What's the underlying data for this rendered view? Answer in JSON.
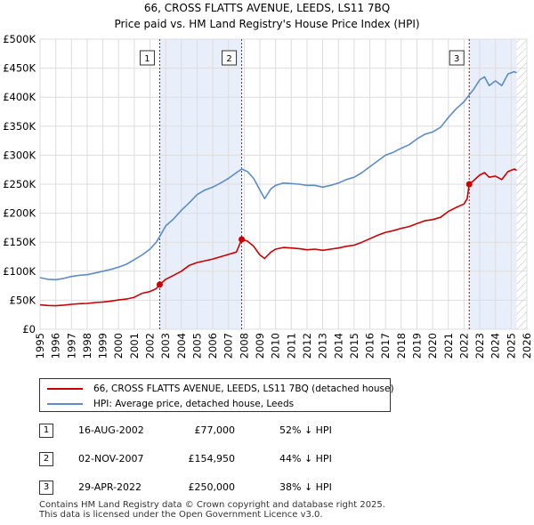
{
  "chart_data": {
    "type": "line",
    "title": "66, CROSS FLATTS AVENUE, LEEDS, LS11 7BQ",
    "subtitle": "Price paid vs. HM Land Registry's House Price Index (HPI)",
    "xlim": [
      1995,
      2026
    ],
    "ylim": [
      0,
      500000
    ],
    "x_ticks": [
      "1995",
      "1996",
      "1997",
      "1998",
      "1999",
      "2000",
      "2001",
      "2002",
      "2003",
      "2004",
      "2005",
      "2006",
      "2007",
      "2008",
      "2009",
      "2010",
      "2011",
      "2012",
      "2013",
      "2014",
      "2015",
      "2016",
      "2017",
      "2018",
      "2019",
      "2020",
      "2021",
      "2022",
      "2023",
      "2024",
      "2025",
      "2026"
    ],
    "y_ticks": [
      {
        "value": 0,
        "label": "£0"
      },
      {
        "value": 50000,
        "label": "£50K"
      },
      {
        "value": 100000,
        "label": "£100K"
      },
      {
        "value": 150000,
        "label": "£150K"
      },
      {
        "value": 200000,
        "label": "£200K"
      },
      {
        "value": 250000,
        "label": "£250K"
      },
      {
        "value": 300000,
        "label": "£300K"
      },
      {
        "value": 350000,
        "label": "£350K"
      },
      {
        "value": 400000,
        "label": "£400K"
      },
      {
        "value": 450000,
        "label": "£450K"
      },
      {
        "value": 500000,
        "label": "£500K"
      }
    ],
    "shaded_ranges": [
      [
        2002.62,
        2007.84
      ],
      [
        2022.33,
        2025.35
      ]
    ],
    "hatched_from": 2025.35,
    "series": [
      {
        "name": "66, CROSS FLATTS AVENUE, LEEDS, LS11 7BQ (detached house)",
        "color": "#cc0000",
        "points": [
          [
            1995.0,
            42000
          ],
          [
            1995.5,
            41000
          ],
          [
            1996.0,
            40500
          ],
          [
            1996.5,
            41500
          ],
          [
            1997.0,
            43000
          ],
          [
            1997.5,
            44000
          ],
          [
            1998.0,
            44500
          ],
          [
            1998.5,
            46000
          ],
          [
            1999.0,
            47000
          ],
          [
            1999.5,
            48500
          ],
          [
            2000.0,
            50500
          ],
          [
            2000.5,
            52000
          ],
          [
            2001.0,
            55000
          ],
          [
            2001.5,
            62000
          ],
          [
            2002.0,
            65000
          ],
          [
            2002.4,
            70000
          ],
          [
            2002.62,
            77000
          ],
          [
            2003.0,
            86000
          ],
          [
            2003.5,
            93000
          ],
          [
            2004.0,
            100000
          ],
          [
            2004.5,
            110000
          ],
          [
            2005.0,
            115000
          ],
          [
            2005.5,
            118000
          ],
          [
            2006.0,
            121000
          ],
          [
            2006.5,
            125000
          ],
          [
            2007.0,
            129000
          ],
          [
            2007.5,
            133000
          ],
          [
            2007.84,
            154950
          ],
          [
            2008.2,
            152000
          ],
          [
            2008.6,
            143000
          ],
          [
            2009.0,
            128000
          ],
          [
            2009.3,
            122000
          ],
          [
            2009.7,
            133000
          ],
          [
            2010.0,
            138000
          ],
          [
            2010.5,
            141000
          ],
          [
            2011.0,
            140000
          ],
          [
            2011.5,
            139000
          ],
          [
            2012.0,
            137000
          ],
          [
            2012.5,
            138000
          ],
          [
            2013.0,
            136000
          ],
          [
            2013.5,
            138000
          ],
          [
            2014.0,
            140000
          ],
          [
            2014.5,
            143000
          ],
          [
            2015.0,
            145000
          ],
          [
            2015.5,
            150000
          ],
          [
            2016.0,
            156000
          ],
          [
            2016.5,
            162000
          ],
          [
            2017.0,
            167000
          ],
          [
            2017.5,
            170000
          ],
          [
            2018.0,
            174000
          ],
          [
            2018.5,
            177000
          ],
          [
            2019.0,
            182000
          ],
          [
            2019.5,
            187000
          ],
          [
            2020.0,
            189000
          ],
          [
            2020.5,
            193000
          ],
          [
            2021.0,
            203000
          ],
          [
            2021.5,
            210000
          ],
          [
            2022.0,
            216000
          ],
          [
            2022.2,
            225000
          ],
          [
            2022.33,
            250000
          ],
          [
            2022.6,
            256000
          ],
          [
            2023.0,
            266000
          ],
          [
            2023.3,
            270000
          ],
          [
            2023.6,
            262000
          ],
          [
            2024.0,
            264000
          ],
          [
            2024.4,
            258000
          ],
          [
            2024.8,
            272000
          ],
          [
            2025.2,
            276000
          ],
          [
            2025.35,
            274000
          ]
        ]
      },
      {
        "name": "HPI: Average price, detached house, Leeds",
        "color": "#5b8ccc",
        "points": [
          [
            1995.0,
            89000
          ],
          [
            1995.5,
            86000
          ],
          [
            1996.0,
            85500
          ],
          [
            1996.5,
            87500
          ],
          [
            1997.0,
            91000
          ],
          [
            1997.5,
            93000
          ],
          [
            1998.0,
            94000
          ],
          [
            1998.5,
            97000
          ],
          [
            1999.0,
            100000
          ],
          [
            1999.5,
            103000
          ],
          [
            2000.0,
            107000
          ],
          [
            2000.5,
            112000
          ],
          [
            2001.0,
            120000
          ],
          [
            2001.5,
            128000
          ],
          [
            2002.0,
            138000
          ],
          [
            2002.4,
            150000
          ],
          [
            2002.62,
            160000
          ],
          [
            2003.0,
            178000
          ],
          [
            2003.5,
            190000
          ],
          [
            2004.0,
            205000
          ],
          [
            2004.5,
            218000
          ],
          [
            2005.0,
            232000
          ],
          [
            2005.5,
            240000
          ],
          [
            2006.0,
            245000
          ],
          [
            2006.5,
            252000
          ],
          [
            2007.0,
            260000
          ],
          [
            2007.5,
            270000
          ],
          [
            2007.84,
            276000
          ],
          [
            2008.2,
            272000
          ],
          [
            2008.6,
            260000
          ],
          [
            2009.0,
            240000
          ],
          [
            2009.3,
            225000
          ],
          [
            2009.7,
            242000
          ],
          [
            2010.0,
            248000
          ],
          [
            2010.5,
            252000
          ],
          [
            2011.0,
            251000
          ],
          [
            2011.5,
            250000
          ],
          [
            2012.0,
            248000
          ],
          [
            2012.5,
            248000
          ],
          [
            2013.0,
            245000
          ],
          [
            2013.5,
            248000
          ],
          [
            2014.0,
            252000
          ],
          [
            2014.5,
            258000
          ],
          [
            2015.0,
            262000
          ],
          [
            2015.5,
            270000
          ],
          [
            2016.0,
            280000
          ],
          [
            2016.5,
            290000
          ],
          [
            2017.0,
            300000
          ],
          [
            2017.5,
            305000
          ],
          [
            2018.0,
            312000
          ],
          [
            2018.5,
            318000
          ],
          [
            2019.0,
            328000
          ],
          [
            2019.5,
            336000
          ],
          [
            2020.0,
            340000
          ],
          [
            2020.5,
            348000
          ],
          [
            2021.0,
            365000
          ],
          [
            2021.5,
            380000
          ],
          [
            2022.0,
            392000
          ],
          [
            2022.33,
            404000
          ],
          [
            2022.6,
            413000
          ],
          [
            2023.0,
            430000
          ],
          [
            2023.3,
            435000
          ],
          [
            2023.6,
            420000
          ],
          [
            2024.0,
            428000
          ],
          [
            2024.4,
            420000
          ],
          [
            2024.8,
            440000
          ],
          [
            2025.2,
            444000
          ],
          [
            2025.35,
            442000
          ]
        ]
      }
    ],
    "sale_markers": [
      {
        "label": "1",
        "x": 2002.62,
        "y": 77000
      },
      {
        "label": "2",
        "x": 2007.84,
        "y": 154950
      },
      {
        "label": "3",
        "x": 2022.33,
        "y": 250000
      }
    ]
  },
  "legend": {
    "items": [
      {
        "label": "66, CROSS FLATTS AVENUE, LEEDS, LS11 7BQ (detached house)",
        "color": "#cc0000"
      },
      {
        "label": "HPI: Average price, detached house, Leeds",
        "color": "#5b8ccc"
      }
    ]
  },
  "sales": [
    {
      "num": "1",
      "date": "16-AUG-2002",
      "price": "£77,000",
      "hpi": "52% ↓ HPI"
    },
    {
      "num": "2",
      "date": "02-NOV-2007",
      "price": "£154,950",
      "hpi": "44% ↓ HPI"
    },
    {
      "num": "3",
      "date": "29-APR-2022",
      "price": "£250,000",
      "hpi": "38% ↓ HPI"
    }
  ],
  "footer": {
    "line1": "Contains HM Land Registry data © Crown copyright and database right 2025.",
    "line2": "This data is licensed under the Open Government Licence v3.0."
  }
}
